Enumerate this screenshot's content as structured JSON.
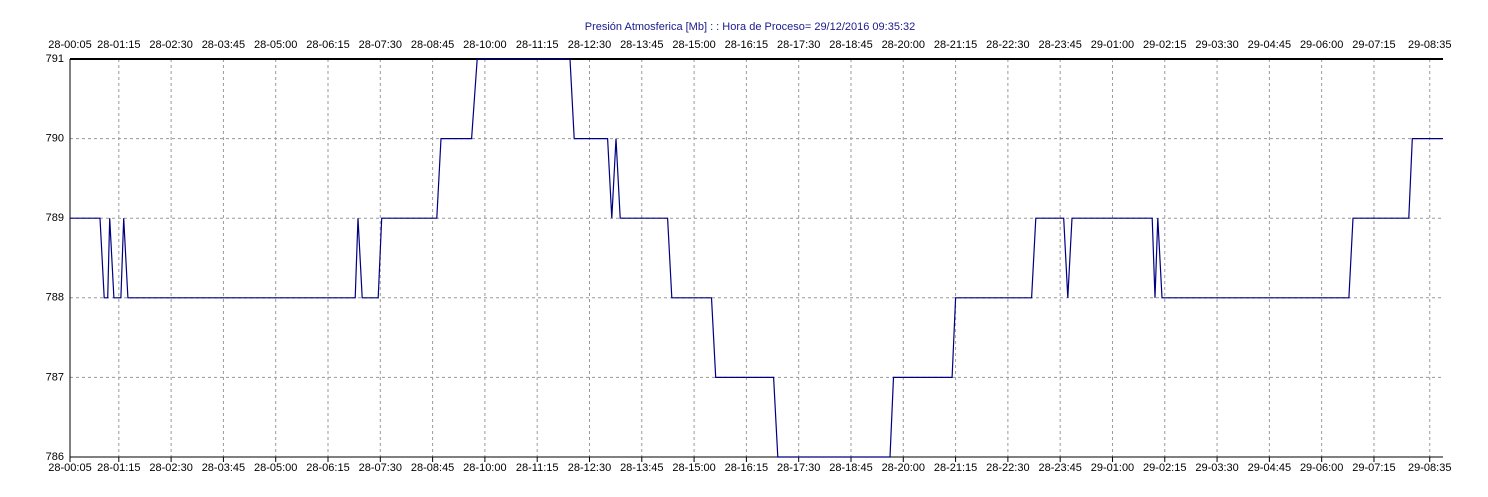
{
  "chart_data": {
    "type": "line",
    "title": "Presión Atmosferica [Mb] : : Hora de Proceso= 29/12/2016 09:35:32",
    "x": [
      "28-00:05",
      "28-00:48",
      "28-00:54",
      "28-00:59",
      "28-01:02",
      "28-01:08",
      "28-01:18",
      "28-01:22",
      "28-01:28",
      "28-06:54",
      "28-06:58",
      "28-07:04",
      "28-07:27",
      "28-07:32",
      "28-08:51",
      "28-08:57",
      "28-09:41",
      "28-09:49",
      "28-12:02",
      "28-12:08",
      "28-12:56",
      "28-13:02",
      "28-13:08",
      "28-13:14",
      "28-14:22",
      "28-14:28",
      "28-15:25",
      "28-15:31",
      "28-16:54",
      "28-17:00",
      "28-19:41",
      "28-19:46",
      "28-21:10",
      "28-21:15",
      "28-23:04",
      "28-23:10",
      "28-23:50",
      "28-23:56",
      "29-00:02",
      "29-01:57",
      "29-02:01",
      "29-02:05",
      "29-02:11",
      "29-06:39",
      "29-06:45",
      "29-08:05",
      "29-08:10",
      "29-08:54"
    ],
    "series": [
      {
        "color": "#000080",
        "values": [
          789,
          789,
          788,
          788,
          789,
          788,
          788,
          789,
          788,
          788,
          789,
          788,
          788,
          789,
          789,
          790,
          790,
          791,
          791,
          790,
          790,
          789,
          790,
          789,
          789,
          788,
          788,
          787,
          787,
          786,
          786,
          787,
          787,
          788,
          788,
          789,
          789,
          788,
          789,
          789,
          788,
          789,
          788,
          788,
          789,
          789,
          790,
          790
        ]
      }
    ],
    "xlim": [
      "28-00:05",
      "29-08:54"
    ],
    "xticks": [
      "28-00:05",
      "28-01:15",
      "28-02:30",
      "28-03:45",
      "28-05:00",
      "28-06:15",
      "28-07:30",
      "28-08:45",
      "28-10:00",
      "28-11:15",
      "28-12:30",
      "28-13:45",
      "28-15:00",
      "28-16:15",
      "28-17:30",
      "28-18:45",
      "28-20:00",
      "28-21:15",
      "28-22:30",
      "28-23:45",
      "29-01:00",
      "29-02:15",
      "29-03:30",
      "29-04:45",
      "29-06:00",
      "29-07:15",
      "29-08:35"
    ],
    "ylim": [
      786,
      791
    ],
    "yticks": [
      786,
      787,
      788,
      789,
      790,
      791
    ],
    "grid": true
  }
}
